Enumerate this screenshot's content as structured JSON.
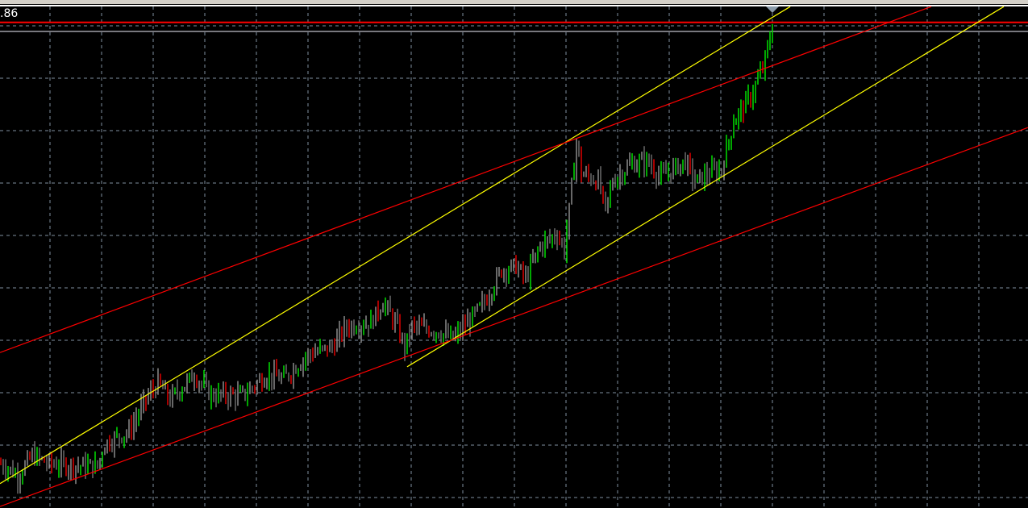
{
  "price_label": ".86",
  "chart_data": {
    "type": "candlestick",
    "title": "",
    "grid": true,
    "background": "#000000",
    "colors": {
      "up": "#00e000",
      "down": "#e00000",
      "grid": "#8090a0",
      "channel_yellow": "#ffff00",
      "channel_red": "#ff0000",
      "price_line": "#ff0000"
    },
    "ylim": [
      0,
      100
    ],
    "xlim": [
      0,
      425
    ],
    "price_path": [
      [
        0,
        8.7
      ],
      [
        3,
        7.9
      ],
      [
        7,
        6.3
      ],
      [
        13,
        10.3
      ],
      [
        20,
        8.7
      ],
      [
        33,
        8.3
      ],
      [
        40,
        8.3
      ],
      [
        43,
        12.7
      ],
      [
        53,
        15.1
      ],
      [
        60,
        21.4
      ],
      [
        65,
        24.6
      ],
      [
        70,
        21.4
      ],
      [
        80,
        26.2
      ],
      [
        87,
        22.2
      ],
      [
        100,
        22.2
      ],
      [
        110,
        26.2
      ],
      [
        117,
        25.4
      ],
      [
        127,
        30.2
      ],
      [
        137,
        31.7
      ],
      [
        143,
        35.7
      ],
      [
        153,
        36.5
      ],
      [
        158,
        40.5
      ],
      [
        163,
        36.5
      ],
      [
        167,
        31.7
      ],
      [
        170,
        35.7
      ],
      [
        180,
        34.9
      ],
      [
        187,
        33.3
      ],
      [
        193,
        36.5
      ],
      [
        200,
        40.5
      ],
      [
        207,
        46.8
      ],
      [
        213,
        47.6
      ],
      [
        217,
        45.2
      ],
      [
        223,
        51.6
      ],
      [
        230,
        54.0
      ],
      [
        233,
        50.8
      ],
      [
        235,
        58.7
      ],
      [
        238,
        72.2
      ],
      [
        240,
        65.9
      ],
      [
        247,
        64.3
      ],
      [
        250,
        58.7
      ],
      [
        253,
        64.3
      ],
      [
        260,
        67.5
      ],
      [
        267,
        68.3
      ],
      [
        273,
        65.1
      ],
      [
        283,
        68.3
      ],
      [
        287,
        64.3
      ],
      [
        293,
        65.9
      ],
      [
        298,
        66.7
      ],
      [
        303,
        76.2
      ],
      [
        310,
        81.0
      ],
      [
        315,
        86.5
      ],
      [
        319,
        94.4
      ]
    ],
    "trend_lines": [
      {
        "color": "yellow",
        "from": [
          0,
          4.8
        ],
        "to": [
          326.7,
          98.7
        ]
      },
      {
        "color": "yellow",
        "from": [
          168.3,
          27.8
        ],
        "to": [
          415,
          98.7
        ]
      },
      {
        "color": "red",
        "from": [
          0,
          30.6
        ],
        "to": [
          385,
          98.7
        ]
      },
      {
        "color": "red",
        "from": [
          0,
          0.3
        ],
        "to": [
          425,
          74.9
        ]
      }
    ],
    "horizontal_lines": [
      {
        "color": "red",
        "level": 95.6
      },
      {
        "color": "gray",
        "level": 93.8
      }
    ],
    "last_bar_marker": 319
  }
}
